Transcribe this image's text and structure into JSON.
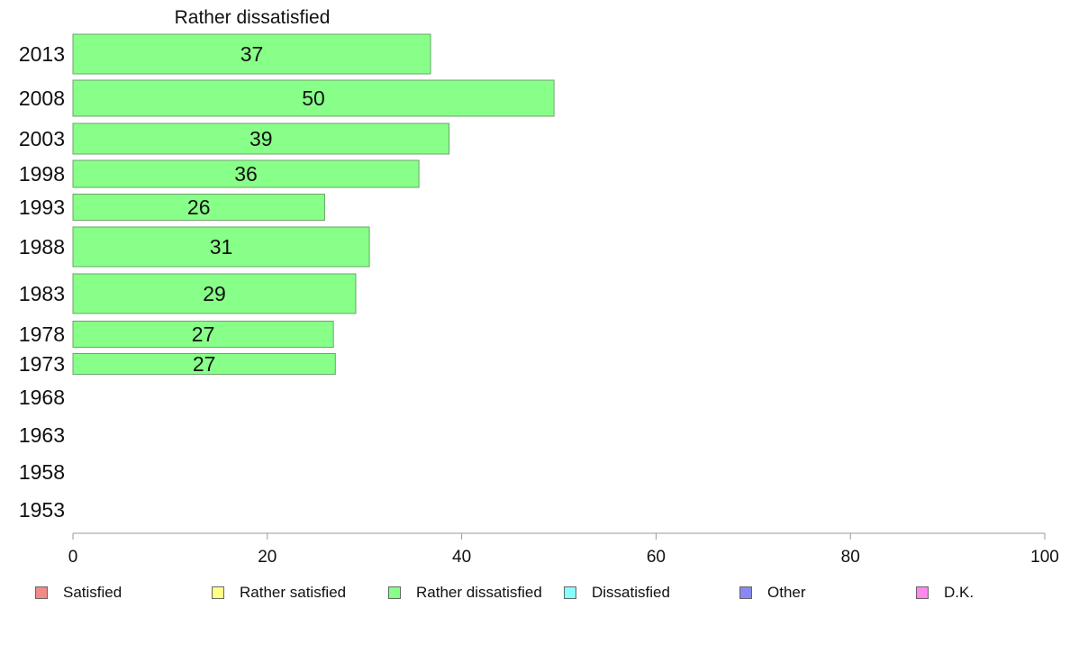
{
  "chart_data": {
    "type": "bar",
    "orientation": "horizontal",
    "title": "Rather dissatisfied",
    "categories": [
      "2013",
      "2008",
      "2003",
      "1998",
      "1993",
      "1988",
      "1983",
      "1978",
      "1973",
      "1968",
      "1963",
      "1958",
      "1953"
    ],
    "series": [
      {
        "name": "Rather dissatisfied",
        "color": "#88ff88",
        "values": [
          36.8,
          49.5,
          38.7,
          35.6,
          25.9,
          30.5,
          29.1,
          26.8,
          27.0,
          null,
          null,
          null,
          null
        ],
        "labels": [
          "37",
          "50",
          "39",
          "36",
          "26",
          "31",
          "29",
          "27",
          "27",
          "",
          "",
          "",
          ""
        ]
      }
    ],
    "xlim": [
      0,
      100
    ],
    "xticks": [
      0,
      20,
      40,
      60,
      80,
      100
    ],
    "grid": false,
    "legend": {
      "placement": "bottom",
      "items": [
        {
          "label": "Satisfied",
          "color": "#f28a8a"
        },
        {
          "label": "Rather satisfied",
          "color": "#ffff88"
        },
        {
          "label": "Rather dissatisfied",
          "color": "#88ff88"
        },
        {
          "label": "Dissatisfied",
          "color": "#88ffff"
        },
        {
          "label": "Other",
          "color": "#8888ee"
        },
        {
          "label": "D.K.",
          "color": "#ff88ee"
        }
      ]
    }
  }
}
